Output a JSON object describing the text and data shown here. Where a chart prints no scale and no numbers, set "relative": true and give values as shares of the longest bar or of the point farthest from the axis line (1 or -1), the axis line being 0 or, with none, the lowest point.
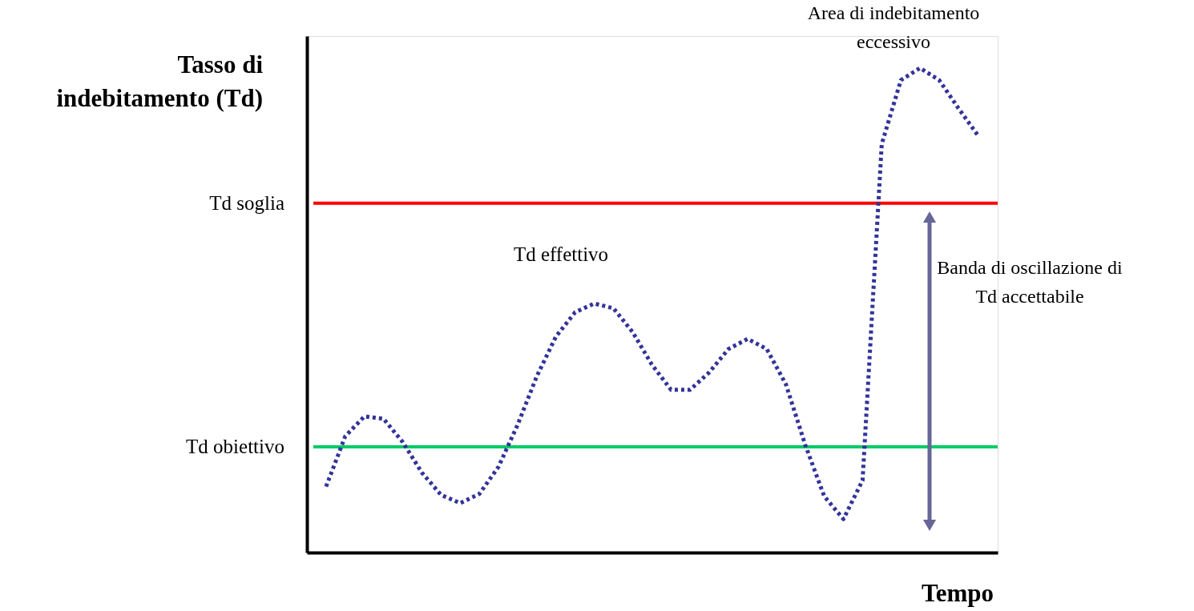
{
  "chart_data": {
    "type": "line",
    "relative": true,
    "xlabel": "Tempo",
    "ylabel": "Tasso di indebitamento (Td)",
    "categories": [
      null,
      null,
      null,
      null,
      null,
      null,
      null,
      null,
      null,
      null,
      null,
      null,
      null,
      null,
      null,
      null,
      null,
      null,
      null,
      null,
      null,
      null,
      null,
      null,
      null,
      null,
      null,
      null,
      null,
      null,
      null,
      null,
      null,
      null,
      null
    ],
    "series": [
      {
        "name": "Td effettivo",
        "color": "#333399",
        "line_style": "dotted",
        "values": [
          0.136,
          0.24,
          0.281,
          0.276,
          0.228,
          0.165,
          0.119,
          0.102,
          0.121,
          0.177,
          0.264,
          0.364,
          0.446,
          0.496,
          0.514,
          0.504,
          0.455,
          0.388,
          0.336,
          0.336,
          0.372,
          0.42,
          0.441,
          0.42,
          0.347,
          0.223,
          0.116,
          0.069,
          0.149,
          0.843,
          0.975,
          1.0,
          0.975,
          0.917,
          0.862
        ]
      }
    ],
    "ref_lines": [
      {
        "axis": "y",
        "value": 0.721,
        "label": "Td soglia",
        "color": "#ff0000"
      },
      {
        "axis": "y",
        "value": 0.218,
        "label": "Td obiettivo",
        "color": "#00cc66"
      }
    ],
    "annotations": [
      "Area di indebitamento eccessivo",
      "Banda di oscillazione di Td accettabile"
    ],
    "grid": false
  }
}
